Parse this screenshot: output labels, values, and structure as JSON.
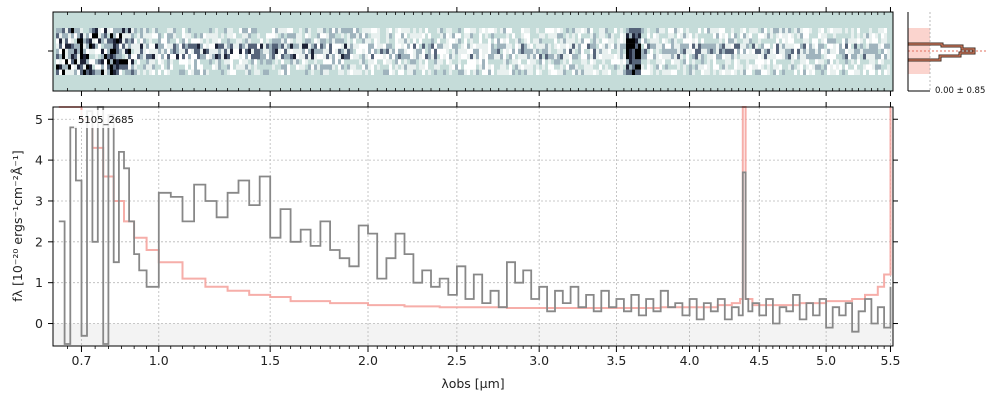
{
  "chart_data": {
    "type": "line",
    "object_label": "5105_2685",
    "xlabel": "λobs [μm]",
    "ylabel": "fλ [10⁻²⁰ ergs⁻¹cm⁻²Å⁻¹]",
    "x_scale": "power (compressed at short wavelengths)",
    "xlim": [
      0.6,
      5.52
    ],
    "ylim": [
      -0.55,
      5.3
    ],
    "x_ticks": [
      0.7,
      1.0,
      1.5,
      2.0,
      2.5,
      3.0,
      3.5,
      4.0,
      4.5,
      5.0,
      5.5
    ],
    "x_tick_labels": [
      "0.7",
      "1.0",
      "1.5",
      "2.0",
      "2.5",
      "3.0",
      "3.5",
      "4.0",
      "4.5",
      "5.0",
      "5.5"
    ],
    "y_ticks": [
      0,
      1,
      2,
      3,
      4,
      5
    ],
    "y_tick_labels": [
      "0",
      "1",
      "2",
      "3",
      "4",
      "5"
    ],
    "grid": true,
    "series": [
      {
        "name": "",
        "color": "#888888",
        "style": "step",
        "x": [
          0.62,
          0.64,
          0.66,
          0.68,
          0.7,
          0.72,
          0.74,
          0.76,
          0.78,
          0.8,
          0.82,
          0.84,
          0.86,
          0.88,
          0.9,
          0.92,
          0.95,
          1.0,
          1.05,
          1.1,
          1.15,
          1.2,
          1.25,
          1.3,
          1.35,
          1.4,
          1.45,
          1.5,
          1.55,
          1.6,
          1.65,
          1.7,
          1.75,
          1.8,
          1.85,
          1.9,
          1.95,
          2.0,
          2.05,
          2.1,
          2.15,
          2.2,
          2.25,
          2.3,
          2.35,
          2.4,
          2.45,
          2.5,
          2.55,
          2.6,
          2.65,
          2.7,
          2.75,
          2.8,
          2.85,
          2.9,
          2.95,
          3.0,
          3.05,
          3.1,
          3.15,
          3.2,
          3.25,
          3.3,
          3.35,
          3.4,
          3.45,
          3.5,
          3.55,
          3.6,
          3.65,
          3.7,
          3.75,
          3.8,
          3.85,
          3.9,
          3.95,
          4.0,
          4.05,
          4.1,
          4.15,
          4.2,
          4.25,
          4.3,
          4.35,
          4.38,
          4.4,
          4.42,
          4.45,
          4.5,
          4.55,
          4.6,
          4.65,
          4.7,
          4.75,
          4.8,
          4.85,
          4.9,
          4.95,
          5.0,
          5.05,
          5.1,
          5.15,
          5.2,
          5.25,
          5.3,
          5.35,
          5.4,
          5.45,
          5.5
        ],
        "y": [
          2.5,
          -0.5,
          4.8,
          3.5,
          -0.3,
          5.2,
          2.0,
          5.3,
          -0.5,
          5.1,
          1.5,
          4.2,
          3.8,
          2.5,
          1.7,
          1.3,
          0.9,
          3.2,
          3.1,
          2.5,
          3.4,
          3.0,
          2.6,
          3.2,
          3.5,
          2.9,
          3.6,
          2.1,
          2.8,
          2.0,
          2.3,
          1.9,
          2.5,
          1.8,
          1.6,
          1.4,
          2.4,
          2.2,
          1.1,
          1.6,
          2.2,
          1.7,
          1.0,
          1.3,
          0.9,
          1.1,
          0.7,
          1.4,
          0.6,
          1.2,
          0.5,
          0.8,
          0.4,
          1.5,
          1.0,
          1.3,
          0.6,
          0.9,
          0.3,
          0.8,
          0.5,
          0.9,
          0.4,
          0.7,
          0.3,
          0.8,
          0.4,
          0.6,
          0.3,
          0.7,
          0.2,
          0.6,
          0.3,
          0.8,
          0.4,
          0.5,
          0.2,
          0.6,
          0.1,
          0.5,
          0.3,
          0.6,
          0.1,
          0.4,
          0.2,
          3.7,
          0.6,
          0.3,
          0.5,
          0.2,
          0.6,
          0.0,
          0.4,
          0.3,
          0.7,
          0.1,
          0.5,
          0.2,
          0.6,
          -0.1,
          0.4,
          0.2,
          0.5,
          -0.2,
          0.3,
          0.6,
          0.0,
          0.4,
          -0.1,
          0.9
        ]
      },
      {
        "name": "",
        "color": "#f4a09a",
        "style": "step",
        "x": [
          0.62,
          0.66,
          0.7,
          0.74,
          0.78,
          0.82,
          0.86,
          0.9,
          0.95,
          1.0,
          1.1,
          1.2,
          1.3,
          1.4,
          1.5,
          1.6,
          1.8,
          2.0,
          2.2,
          2.4,
          2.6,
          2.8,
          3.0,
          3.2,
          3.4,
          3.6,
          3.8,
          4.0,
          4.2,
          4.3,
          4.36,
          4.38,
          4.4,
          4.45,
          4.6,
          4.8,
          5.0,
          5.2,
          5.3,
          5.4,
          5.45,
          5.5
        ],
        "y": [
          5.3,
          5.3,
          5.0,
          4.3,
          3.6,
          3.0,
          2.5,
          2.1,
          1.8,
          1.5,
          1.1,
          0.9,
          0.8,
          0.7,
          0.65,
          0.55,
          0.5,
          0.45,
          0.42,
          0.4,
          0.4,
          0.38,
          0.38,
          0.38,
          0.38,
          0.38,
          0.4,
          0.4,
          0.45,
          0.5,
          0.6,
          5.3,
          0.6,
          0.45,
          0.45,
          0.5,
          0.55,
          0.6,
          0.7,
          0.9,
          1.2,
          5.3
        ]
      }
    ],
    "spectrum_2d": {
      "colormap": "bone"
    },
    "profile_panel": {
      "label": "0.00 ± 0.85"
    }
  }
}
